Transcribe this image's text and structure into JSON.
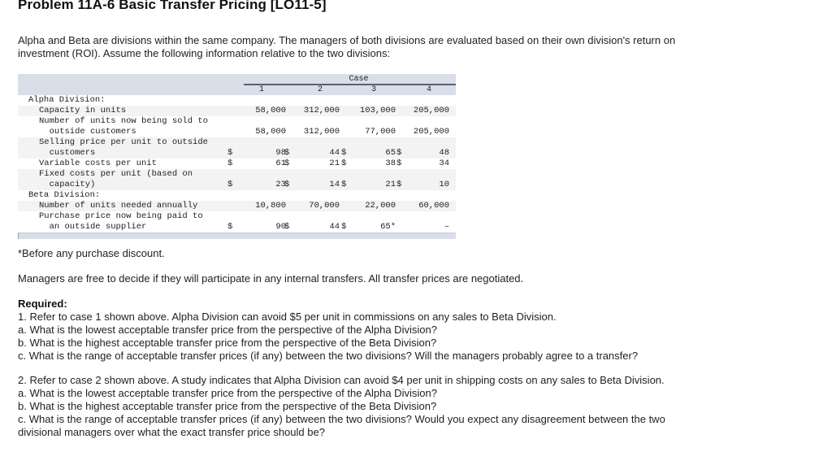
{
  "title": "Problem 11A-6 Basic Transfer Pricing [LO11-5]",
  "intro": "Alpha and Beta are divisions within the same company. The managers of both divisions are evaluated based on their own division's return on investment (ROI). Assume the following information relative to the two divisions:",
  "table": {
    "case_header": "Case",
    "columns": [
      "1",
      "2",
      "3",
      "4"
    ],
    "rows": [
      {
        "label": "Alpha Division:",
        "indent": 0,
        "values": [
          "",
          "",
          "",
          ""
        ],
        "dollar": false
      },
      {
        "label": "Capacity in units",
        "indent": 1,
        "values": [
          "58,000",
          "312,000",
          "103,000",
          "205,000"
        ],
        "dollar": false
      },
      {
        "label": "Number of units now being sold to\n  outside customers",
        "indent": 1,
        "values": [
          "58,000",
          "312,000",
          "77,000",
          "205,000"
        ],
        "dollar": false
      },
      {
        "label": "Selling price per unit to outside\n  customers",
        "indent": 1,
        "values": [
          "98",
          "44",
          "65",
          "48"
        ],
        "dollar": true
      },
      {
        "label": "Variable costs per unit",
        "indent": 1,
        "values": [
          "61",
          "21",
          "38",
          "34"
        ],
        "dollar": true
      },
      {
        "label": "Fixed costs per unit (based on\n  capacity)",
        "indent": 1,
        "values": [
          "23",
          "14",
          "21",
          "10"
        ],
        "dollar": true
      },
      {
        "label": "Beta Division:",
        "indent": 0,
        "values": [
          "",
          "",
          "",
          ""
        ],
        "dollar": false
      },
      {
        "label": "Number of units needed annually",
        "indent": 1,
        "values": [
          "10,800",
          "70,000",
          "22,000",
          "60,000"
        ],
        "dollar": false
      },
      {
        "label": "Purchase price now being paid to\n  an outside supplier",
        "indent": 1,
        "values": [
          "90",
          "44",
          "65*",
          "–"
        ],
        "dollar": true,
        "dollar_cols": [
          true,
          true,
          true,
          false
        ]
      }
    ],
    "dollar_sign": "$"
  },
  "footnote": "*Before any purchase discount.",
  "managers_note": "Managers are free to decide if they will participate in any internal transfers. All transfer prices are negotiated.",
  "required": {
    "heading": "Required:",
    "q1": {
      "stem": "1. Refer to case 1 shown above. Alpha Division can avoid $5 per unit in commissions on any sales to Beta Division.",
      "a": "a. What is the lowest acceptable transfer price from the perspective of the Alpha Division?",
      "b": "b. What is the highest acceptable transfer price from the perspective of the Beta Division?",
      "c": "c. What is the range of acceptable transfer prices (if any) between the two divisions? Will the managers probably agree to a transfer?"
    },
    "q2": {
      "stem": "2. Refer to case 2 shown above. A study indicates that Alpha Division can avoid $4 per unit in shipping costs on any sales to Beta Division.",
      "a": "a. What is the lowest acceptable transfer price from the perspective of the Alpha Division?",
      "b": "b. What is the highest acceptable transfer price from the perspective of the Beta Division?",
      "c": "c. What is the range of acceptable transfer prices (if any) between the two divisions? Would you expect any disagreement between the two divisional managers over what the exact transfer price should be?"
    }
  }
}
